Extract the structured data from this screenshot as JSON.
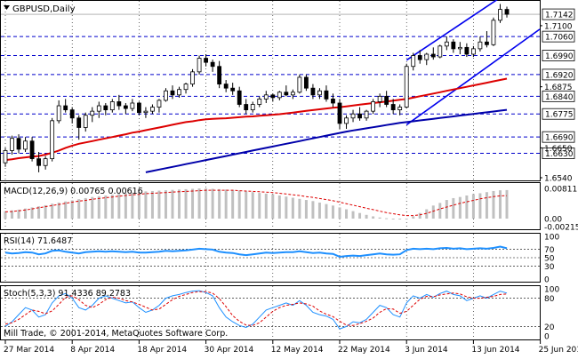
{
  "header": {
    "symbol_label": "GBPUSD,Daily"
  },
  "footer": {
    "copyright": "Mill Trade, © 2001-2014, MetaQuotes Software Corp."
  },
  "colors": {
    "background": "#ffffff",
    "grid": "#000000",
    "price_line": "#0000cc",
    "candle_up": "#ffffff",
    "candle_down": "#000000",
    "ma_fast": "#dd0000",
    "ma_slow": "#0000aa",
    "channel": "#0000ee",
    "macd_hist": "#c0c0c0",
    "macd_signal": "#dd0000",
    "rsi_line": "#1e90ff",
    "stoch_main": "#1e90ff",
    "stoch_signal": "#dd0000"
  },
  "chart_data": [
    {
      "type": "candlestick",
      "title": "GBPUSD,Daily",
      "ylim": [
        1.654,
        1.7175
      ],
      "current_price": "1.7142",
      "price_levels": [
        "1.7060",
        "1.6990",
        "1.6920",
        "1.6840",
        "1.6775",
        "1.6690",
        "1.6630"
      ],
      "y_ticks": [
        "1.7100",
        "1.6875",
        "1.6650",
        "1.6540"
      ],
      "x_ticks": [
        "27 Mar 2014",
        "8 Apr 2014",
        "18 Apr 2014",
        "30 Apr 2014",
        "12 May 2014",
        "22 May 2014",
        "3 Jun 2014",
        "13 Jun 2014",
        "25 Jun 2014"
      ],
      "x_tick_index": [
        0,
        10,
        20,
        30,
        40,
        50,
        60,
        70,
        80
      ],
      "candles": [
        [
          1.6595,
          1.665,
          1.658,
          1.664
        ],
        [
          1.664,
          1.6695,
          1.6625,
          1.6685
        ],
        [
          1.6685,
          1.67,
          1.663,
          1.6645
        ],
        [
          1.6645,
          1.669,
          1.6635,
          1.6675
        ],
        [
          1.6675,
          1.669,
          1.66,
          1.661
        ],
        [
          1.661,
          1.6635,
          1.656,
          1.6585
        ],
        [
          1.6585,
          1.662,
          1.657,
          1.661
        ],
        [
          1.661,
          1.676,
          1.66,
          1.675
        ],
        [
          1.675,
          1.6825,
          1.674,
          1.6805
        ],
        [
          1.6805,
          1.683,
          1.678,
          1.679
        ],
        [
          1.679,
          1.68,
          1.674,
          1.676
        ],
        [
          1.676,
          1.677,
          1.668,
          1.6725
        ],
        [
          1.6725,
          1.678,
          1.671,
          1.677
        ],
        [
          1.677,
          1.68,
          1.6745,
          1.6785
        ],
        [
          1.6785,
          1.682,
          1.676,
          1.6805
        ],
        [
          1.6805,
          1.6815,
          1.677,
          1.679
        ],
        [
          1.679,
          1.683,
          1.678,
          1.682
        ],
        [
          1.682,
          1.6845,
          1.679,
          1.6805
        ],
        [
          1.6805,
          1.6815,
          1.6775,
          1.6795
        ],
        [
          1.6795,
          1.683,
          1.6785,
          1.6815
        ],
        [
          1.6815,
          1.682,
          1.677,
          1.678
        ],
        [
          1.678,
          1.68,
          1.676,
          1.6785
        ],
        [
          1.6785,
          1.681,
          1.6775,
          1.68
        ],
        [
          1.68,
          1.683,
          1.678,
          1.6825
        ],
        [
          1.6825,
          1.687,
          1.682,
          1.686
        ],
        [
          1.686,
          1.688,
          1.683,
          1.6845
        ],
        [
          1.6845,
          1.6875,
          1.6835,
          1.6865
        ],
        [
          1.6865,
          1.689,
          1.685,
          1.6885
        ],
        [
          1.6885,
          1.694,
          1.6875,
          1.693
        ],
        [
          1.693,
          1.699,
          1.692,
          1.698
        ],
        [
          1.698,
          1.6995,
          1.695,
          1.6965
        ],
        [
          1.6965,
          1.6975,
          1.693,
          1.695
        ],
        [
          1.695,
          1.697,
          1.687,
          1.6885
        ],
        [
          1.6885,
          1.69,
          1.6855,
          1.687
        ],
        [
          1.687,
          1.689,
          1.6845,
          1.686
        ],
        [
          1.686,
          1.6875,
          1.68,
          1.681
        ],
        [
          1.681,
          1.683,
          1.6775,
          1.679
        ],
        [
          1.679,
          1.682,
          1.678,
          1.681
        ],
        [
          1.681,
          1.684,
          1.68,
          1.683
        ],
        [
          1.683,
          1.686,
          1.6815,
          1.6845
        ],
        [
          1.6845,
          1.685,
          1.682,
          1.6835
        ],
        [
          1.6835,
          1.686,
          1.6825,
          1.6855
        ],
        [
          1.6855,
          1.688,
          1.684,
          1.6845
        ],
        [
          1.6845,
          1.6865,
          1.683,
          1.6855
        ],
        [
          1.6855,
          1.692,
          1.685,
          1.691
        ],
        [
          1.691,
          1.692,
          1.686,
          1.687
        ],
        [
          1.687,
          1.6885,
          1.683,
          1.6845
        ],
        [
          1.6845,
          1.687,
          1.683,
          1.686
        ],
        [
          1.686,
          1.688,
          1.682,
          1.683
        ],
        [
          1.683,
          1.685,
          1.68,
          1.6815
        ],
        [
          1.6815,
          1.683,
          1.672,
          1.674
        ],
        [
          1.674,
          1.677,
          1.672,
          1.676
        ],
        [
          1.676,
          1.679,
          1.6745,
          1.6775
        ],
        [
          1.6775,
          1.68,
          1.675,
          1.676
        ],
        [
          1.676,
          1.679,
          1.675,
          1.6785
        ],
        [
          1.6785,
          1.683,
          1.6775,
          1.682
        ],
        [
          1.682,
          1.685,
          1.68,
          1.684
        ],
        [
          1.684,
          1.686,
          1.68,
          1.681
        ],
        [
          1.681,
          1.683,
          1.6775,
          1.679
        ],
        [
          1.679,
          1.681,
          1.677,
          1.68
        ],
        [
          1.68,
          1.696,
          1.6795,
          1.695
        ],
        [
          1.695,
          1.7,
          1.6935,
          1.699
        ],
        [
          1.699,
          1.701,
          1.696,
          1.6975
        ],
        [
          1.6975,
          1.7,
          1.6955,
          1.6995
        ],
        [
          1.6995,
          1.702,
          1.6975,
          1.6985
        ],
        [
          1.6985,
          1.703,
          1.698,
          1.7025
        ],
        [
          1.7025,
          1.706,
          1.701,
          1.704
        ],
        [
          1.704,
          1.705,
          1.7,
          1.7015
        ],
        [
          1.7015,
          1.704,
          1.6995,
          1.702
        ],
        [
          1.702,
          1.7035,
          1.6985,
          1.6995
        ],
        [
          1.6995,
          1.7025,
          1.6985,
          1.7015
        ],
        [
          1.7015,
          1.706,
          1.7005,
          1.704
        ],
        [
          1.704,
          1.708,
          1.702,
          1.703
        ],
        [
          1.703,
          1.713,
          1.7025,
          1.712
        ],
        [
          1.712,
          1.718,
          1.711,
          1.716
        ],
        [
          1.716,
          1.717,
          1.713,
          1.7142
        ]
      ],
      "series": [
        {
          "values": [
            1.6605,
            1.6608,
            1.6612,
            1.6615,
            1.6618,
            1.662,
            1.6625,
            1.6632,
            1.664,
            1.665,
            1.6658,
            1.6665,
            1.667,
            1.6675,
            1.668,
            1.6685,
            1.669,
            1.6695,
            1.67,
            1.6706,
            1.671,
            1.6715,
            1.672,
            1.6725,
            1.673,
            1.6735,
            1.674,
            1.6745,
            1.6748,
            1.6752,
            1.6755,
            1.6757,
            1.6758,
            1.6759,
            1.6761,
            1.6763,
            1.6765,
            1.6766,
            1.6768,
            1.677,
            1.6772,
            1.6774,
            1.6777,
            1.678,
            1.6783,
            1.6786,
            1.6789,
            1.6792,
            1.6795,
            1.6798,
            1.68,
            1.6803,
            1.6806,
            1.6809,
            1.6812,
            1.6815,
            1.6818,
            1.6821,
            1.6824,
            1.6827,
            1.683,
            1.6835,
            1.684,
            1.6845,
            1.685,
            1.6855,
            1.686,
            1.6865,
            1.687,
            1.6875,
            1.688,
            1.6885,
            1.689,
            1.6895,
            1.69,
            1.6905
          ]
        },
        {
          "values": [
            null,
            null,
            null,
            null,
            null,
            null,
            null,
            null,
            null,
            null,
            null,
            null,
            null,
            null,
            null,
            null,
            null,
            null,
            null,
            null,
            null,
            1.656,
            1.6565,
            1.657,
            1.6575,
            1.658,
            1.6585,
            1.659,
            1.6595,
            1.66,
            1.6605,
            1.661,
            1.6615,
            1.662,
            1.6625,
            1.663,
            1.6635,
            1.664,
            1.6645,
            1.665,
            1.6655,
            1.666,
            1.6665,
            1.667,
            1.6675,
            1.668,
            1.6685,
            1.669,
            1.6695,
            1.67,
            1.6705,
            1.671,
            1.6714,
            1.6718,
            1.6722,
            1.6726,
            1.673,
            1.6734,
            1.6738,
            1.6742,
            1.6745,
            1.6748,
            1.6751,
            1.6754,
            1.6757,
            1.676,
            1.6763,
            1.6766,
            1.6769,
            1.6772,
            1.6775,
            1.6778,
            1.6781,
            1.6784,
            1.6787,
            1.679
          ]
        }
      ]
    },
    {
      "type": "bar",
      "title": "MACD(12,26,9) 0.00765 0.00616",
      "ylim": [
        -0.00215,
        0.00811
      ],
      "y_ticks": [
        "0.00811",
        "0.00",
        "-0.00215"
      ],
      "values": [
        0.002,
        0.0022,
        0.0024,
        0.0027,
        0.003,
        0.0033,
        0.0036,
        0.004,
        0.0043,
        0.0046,
        0.0049,
        0.0052,
        0.0055,
        0.0058,
        0.006,
        0.0062,
        0.0064,
        0.0066,
        0.0068,
        0.007,
        0.0072,
        0.0073,
        0.0074,
        0.0075,
        0.0076,
        0.0077,
        0.0078,
        0.0079,
        0.008,
        0.0081,
        0.0081,
        0.008,
        0.0079,
        0.0078,
        0.0077,
        0.0075,
        0.0073,
        0.0071,
        0.0069,
        0.0067,
        0.0065,
        0.0062,
        0.0059,
        0.0056,
        0.0053,
        0.005,
        0.0047,
        0.0043,
        0.0039,
        0.0035,
        0.003,
        0.0025,
        0.002,
        0.0015,
        0.001,
        0.0006,
        0.0003,
        0.0001,
        -0.0001,
        -0.0002,
        -0.0001,
        0.0006,
        0.0015,
        0.0025,
        0.0035,
        0.0042,
        0.005,
        0.0055,
        0.0058,
        0.0062,
        0.0066,
        0.0068,
        0.0071,
        0.0074,
        0.0076,
        0.00765
      ],
      "series": [
        {
          "values": [
            0.0018,
            0.0019,
            0.0021,
            0.0023,
            0.0026,
            0.0029,
            0.0032,
            0.0035,
            0.0038,
            0.0041,
            0.0044,
            0.0047,
            0.0049,
            0.0052,
            0.0054,
            0.0056,
            0.0058,
            0.006,
            0.0062,
            0.0064,
            0.0065,
            0.0067,
            0.0068,
            0.0069,
            0.007,
            0.0071,
            0.0072,
            0.0073,
            0.0074,
            0.0075,
            0.0076,
            0.0076,
            0.0076,
            0.0076,
            0.0076,
            0.0075,
            0.0074,
            0.0073,
            0.0072,
            0.0071,
            0.007,
            0.0068,
            0.0066,
            0.0064,
            0.0062,
            0.0059,
            0.0057,
            0.0054,
            0.0051,
            0.0048,
            0.0044,
            0.004,
            0.0036,
            0.0032,
            0.0028,
            0.0024,
            0.002,
            0.0016,
            0.0013,
            0.001,
            0.0008,
            0.0008,
            0.001,
            0.0014,
            0.002,
            0.0026,
            0.0031,
            0.0036,
            0.0041,
            0.0045,
            0.0049,
            0.0053,
            0.0056,
            0.0059,
            0.0061,
            0.00616
          ]
        }
      ]
    },
    {
      "type": "line",
      "title": "RSI(14) 71.6487",
      "ylim": [
        0,
        100
      ],
      "y_ticks": [
        "100",
        "70",
        "50",
        "30",
        "0"
      ],
      "series": [
        {
          "values": [
            62,
            60,
            61,
            63,
            62,
            58,
            60,
            66,
            67,
            64,
            62,
            60,
            63,
            64,
            65,
            64,
            65,
            64,
            63,
            64,
            62,
            62,
            63,
            64,
            66,
            65,
            66,
            67,
            69,
            71,
            70,
            69,
            64,
            62,
            61,
            58,
            56,
            58,
            60,
            62,
            61,
            62,
            63,
            63,
            65,
            63,
            61,
            62,
            60,
            59,
            52,
            54,
            55,
            54,
            56,
            58,
            60,
            58,
            57,
            58,
            68,
            71,
            70,
            71,
            70,
            72,
            73,
            71,
            72,
            70,
            71,
            72,
            71,
            73,
            76,
            72
          ]
        }
      ]
    },
    {
      "type": "line",
      "title": "Stoch(5,3,3) 91.4336 89.2783",
      "ylim": [
        0,
        100
      ],
      "y_ticks": [
        "100",
        "80",
        "20",
        "0"
      ],
      "series": [
        {
          "values": [
            20,
            30,
            45,
            60,
            55,
            40,
            45,
            70,
            85,
            90,
            80,
            60,
            55,
            65,
            80,
            85,
            80,
            75,
            70,
            72,
            60,
            50,
            55,
            65,
            80,
            85,
            88,
            92,
            95,
            96,
            92,
            85,
            60,
            40,
            30,
            22,
            18,
            25,
            40,
            55,
            60,
            65,
            70,
            65,
            75,
            65,
            50,
            45,
            42,
            35,
            15,
            20,
            30,
            28,
            35,
            50,
            65,
            60,
            45,
            40,
            70,
            85,
            80,
            88,
            82,
            90,
            95,
            88,
            85,
            75,
            80,
            85,
            80,
            88,
            95,
            91
          ]
        },
        {
          "values": [
            25,
            28,
            35,
            45,
            55,
            52,
            47,
            53,
            67,
            82,
            85,
            77,
            65,
            60,
            67,
            77,
            82,
            80,
            75,
            72,
            67,
            61,
            55,
            57,
            67,
            77,
            84,
            88,
            92,
            94,
            94,
            91,
            79,
            62,
            43,
            31,
            23,
            22,
            28,
            40,
            52,
            60,
            65,
            67,
            70,
            68,
            63,
            53,
            46,
            41,
            31,
            23,
            22,
            26,
            31,
            38,
            50,
            58,
            57,
            48,
            52,
            65,
            78,
            84,
            83,
            87,
            89,
            91,
            89,
            83,
            80,
            80,
            82,
            84,
            88,
            89
          ]
        }
      ]
    }
  ]
}
